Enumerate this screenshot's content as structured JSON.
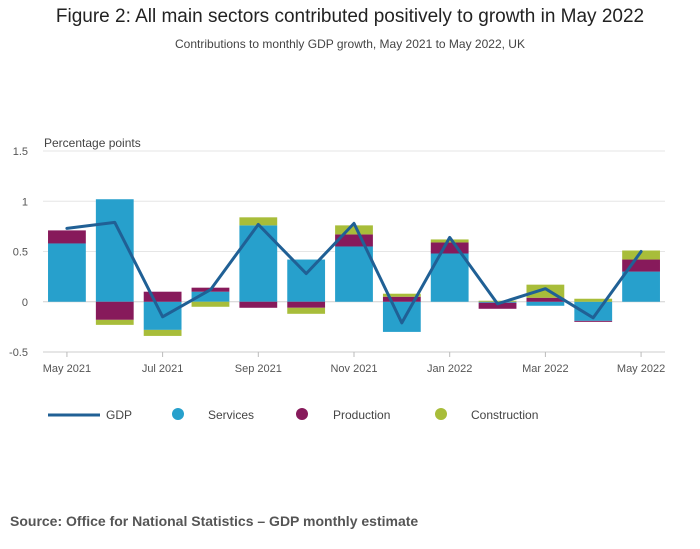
{
  "title": "Figure 2: All main sectors contributed positively to growth in May 2022",
  "subtitle": "Contributions to monthly GDP growth, May 2021 to May 2022, UK",
  "source": "Source: Office for National Statistics – GDP monthly estimate",
  "colors": {
    "gdp": "#206095",
    "services": "#27a0cc",
    "production": "#871a5b",
    "construction": "#a8bd3a",
    "grid": "#e6e6e6",
    "axis": "#cccccc"
  },
  "chart_data": {
    "type": "bar",
    "stacked": true,
    "ylabel": "Percentage points",
    "ylim": [
      -0.5,
      1.5
    ],
    "yticks": [
      -0.5,
      0,
      0.5,
      1,
      1.5
    ],
    "ytick_labels": [
      "-0.5",
      "0",
      "0.5",
      "1",
      "1.5"
    ],
    "categories": [
      "May 2021",
      "Jun 2021",
      "Jul 2021",
      "Aug 2021",
      "Sep 2021",
      "Oct 2021",
      "Nov 2021",
      "Dec 2021",
      "Jan 2022",
      "Feb 2022",
      "Mar 2022",
      "Apr 2022",
      "May 2022"
    ],
    "xtick_labels": [
      "May 2021",
      "",
      "Jul 2021",
      "",
      "Sep 2021",
      "",
      "Nov 2021",
      "",
      "Jan 2022",
      "",
      "Mar 2022",
      "",
      "May 2022"
    ],
    "series": [
      {
        "name": "Services",
        "color_key": "services",
        "values": [
          0.58,
          1.02,
          -0.28,
          0.1,
          0.76,
          0.42,
          0.55,
          -0.3,
          0.48,
          -0.01,
          -0.04,
          -0.19,
          0.3
        ]
      },
      {
        "name": "Production",
        "color_key": "production",
        "values": [
          0.13,
          -0.18,
          0.1,
          0.04,
          -0.06,
          -0.06,
          0.12,
          0.05,
          0.11,
          -0.06,
          0.04,
          -0.01,
          0.12
        ]
      },
      {
        "name": "Construction",
        "color_key": "construction",
        "values": [
          0.0,
          -0.05,
          -0.06,
          -0.05,
          0.08,
          -0.06,
          0.09,
          0.03,
          0.03,
          0.01,
          0.13,
          0.03,
          0.09
        ]
      }
    ],
    "line": {
      "name": "GDP",
      "color_key": "gdp",
      "values": [
        0.73,
        0.79,
        -0.15,
        0.12,
        0.77,
        0.28,
        0.78,
        -0.21,
        0.64,
        -0.02,
        0.13,
        -0.16,
        0.5
      ]
    },
    "legend": {
      "position": "bottom",
      "items": [
        "GDP",
        "Services",
        "Production",
        "Construction"
      ]
    },
    "grid": true
  }
}
